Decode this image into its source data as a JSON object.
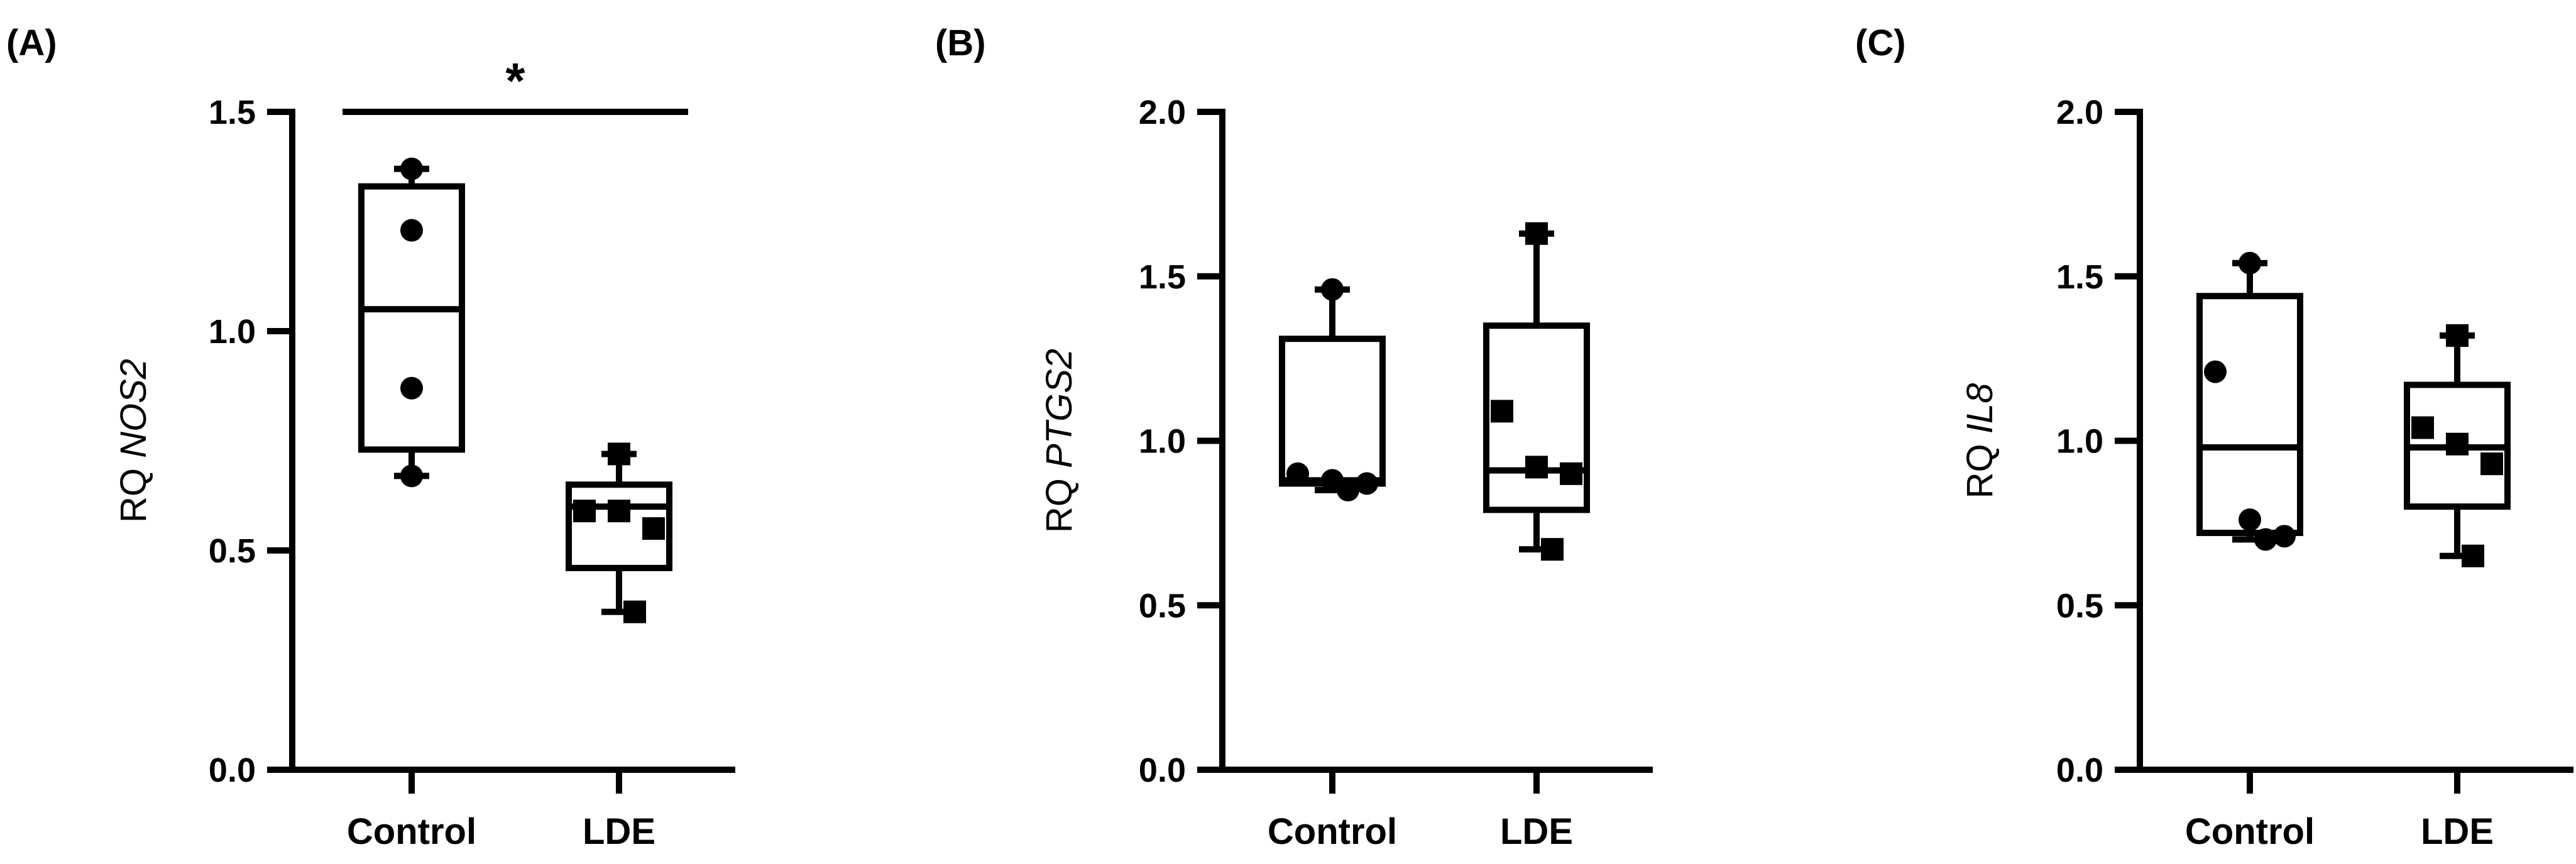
{
  "chart_data": [
    {
      "type": "box",
      "panel_label": "(A)",
      "ylabel_prefix": "RQ",
      "ylabel_gene": "NOS2",
      "ylim": [
        0,
        1.5
      ],
      "yticks": [
        0,
        0.5,
        1.0,
        1.5
      ],
      "ytick_labels": [
        "0.0",
        "0.5",
        "1.0",
        "1.5"
      ],
      "categories": [
        "Control",
        "LDE"
      ],
      "groups": [
        {
          "category": "Control",
          "marker": "circle",
          "min": 0.67,
          "q1": 0.73,
          "median": 1.05,
          "q3": 1.33,
          "max": 1.37,
          "points": [
            1.37,
            1.23,
            0.87,
            0.67
          ]
        },
        {
          "category": "LDE",
          "marker": "square",
          "min": 0.36,
          "q1": 0.46,
          "median": 0.6,
          "q3": 0.65,
          "max": 0.72,
          "points": [
            0.72,
            0.59,
            0.59,
            0.55,
            0.36
          ]
        }
      ],
      "significance": {
        "label": "*",
        "between": [
          "Control",
          "LDE"
        ],
        "y": 1.5
      }
    },
    {
      "type": "box",
      "panel_label": "(B)",
      "ylabel_prefix": "RQ",
      "ylabel_gene": "PTGS2",
      "ylim": [
        0,
        2.0
      ],
      "yticks": [
        0,
        0.5,
        1.0,
        1.5,
        2.0
      ],
      "ytick_labels": [
        "0.0",
        "0.5",
        "1.0",
        "1.5",
        "2.0"
      ],
      "categories": [
        "Control",
        "LDE"
      ],
      "groups": [
        {
          "category": "Control",
          "marker": "circle",
          "min": 0.85,
          "q1": 0.87,
          "median": 0.88,
          "q3": 1.31,
          "max": 1.46,
          "points": [
            1.46,
            0.9,
            0.88,
            0.87,
            0.85
          ]
        },
        {
          "category": "LDE",
          "marker": "square",
          "min": 0.67,
          "q1": 0.79,
          "median": 0.91,
          "q3": 1.35,
          "max": 1.63,
          "points": [
            1.63,
            1.09,
            0.92,
            0.9,
            0.67
          ]
        }
      ]
    },
    {
      "type": "box",
      "panel_label": "(C)",
      "ylabel_prefix": "RQ",
      "ylabel_gene": "IL8",
      "ylim": [
        0,
        2.0
      ],
      "yticks": [
        0,
        0.5,
        1.0,
        1.5,
        2.0
      ],
      "ytick_labels": [
        "0.0",
        "0.5",
        "1.0",
        "1.5",
        "2.0"
      ],
      "categories": [
        "Control",
        "LDE"
      ],
      "groups": [
        {
          "category": "Control",
          "marker": "circle",
          "min": 0.7,
          "q1": 0.72,
          "median": 0.98,
          "q3": 1.44,
          "max": 1.54,
          "points": [
            1.54,
            1.21,
            0.76,
            0.71,
            0.7
          ]
        },
        {
          "category": "LDE",
          "marker": "square",
          "min": 0.65,
          "q1": 0.8,
          "median": 0.98,
          "q3": 1.17,
          "max": 1.32,
          "points": [
            1.32,
            1.04,
            0.99,
            0.93,
            0.65
          ]
        }
      ]
    }
  ]
}
